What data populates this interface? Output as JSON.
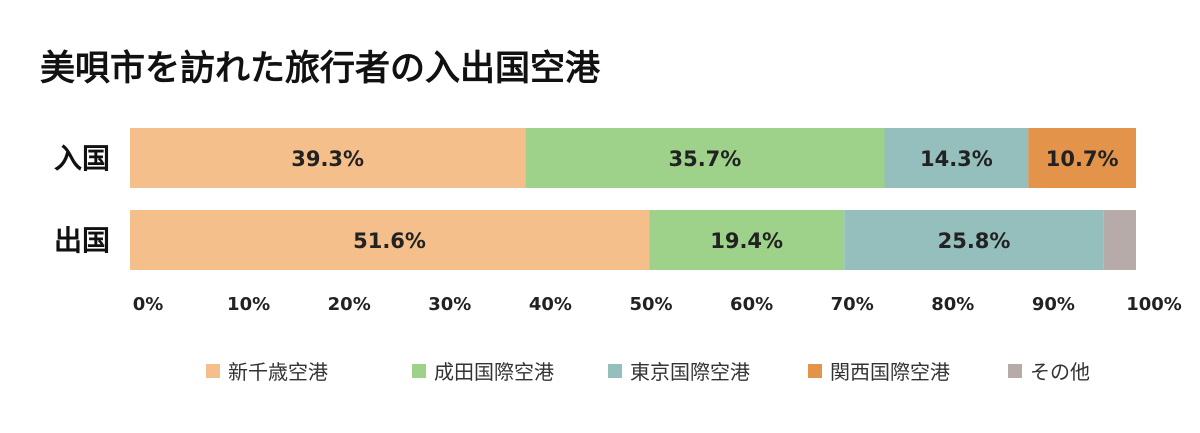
{
  "chart_data": {
    "type": "bar",
    "stacked": true,
    "orientation": "horizontal",
    "title": "美唄市を訪れた旅行者の入出国空港",
    "categories": [
      "入国",
      "出国"
    ],
    "series": [
      {
        "name": "新千歳空港",
        "color": "#F4BF8B",
        "values": [
          39.3,
          51.6
        ],
        "labels": [
          "39.3%",
          "51.6%"
        ]
      },
      {
        "name": "成田国際空港",
        "color": "#9ED28A",
        "values": [
          35.7,
          19.4
        ],
        "labels": [
          "35.7%",
          "19.4%"
        ]
      },
      {
        "name": "東京国際空港",
        "color": "#94BFBC",
        "values": [
          14.3,
          25.8
        ],
        "labels": [
          "14.3%",
          "25.8%"
        ]
      },
      {
        "name": "関西国際空港",
        "color": "#E4934A",
        "values": [
          10.7,
          0
        ],
        "labels": [
          "10.7%",
          ""
        ]
      },
      {
        "name": "その他",
        "color": "#B7ABA9",
        "values": [
          0,
          3.2
        ],
        "labels": [
          "",
          ""
        ]
      }
    ],
    "x_ticks": [
      "0%",
      "10%",
      "20%",
      "30%",
      "40%",
      "50%",
      "60%",
      "70%",
      "80%",
      "90%",
      "100%"
    ],
    "xlim": [
      0,
      100
    ],
    "grid": false,
    "legend_position": "bottom"
  }
}
